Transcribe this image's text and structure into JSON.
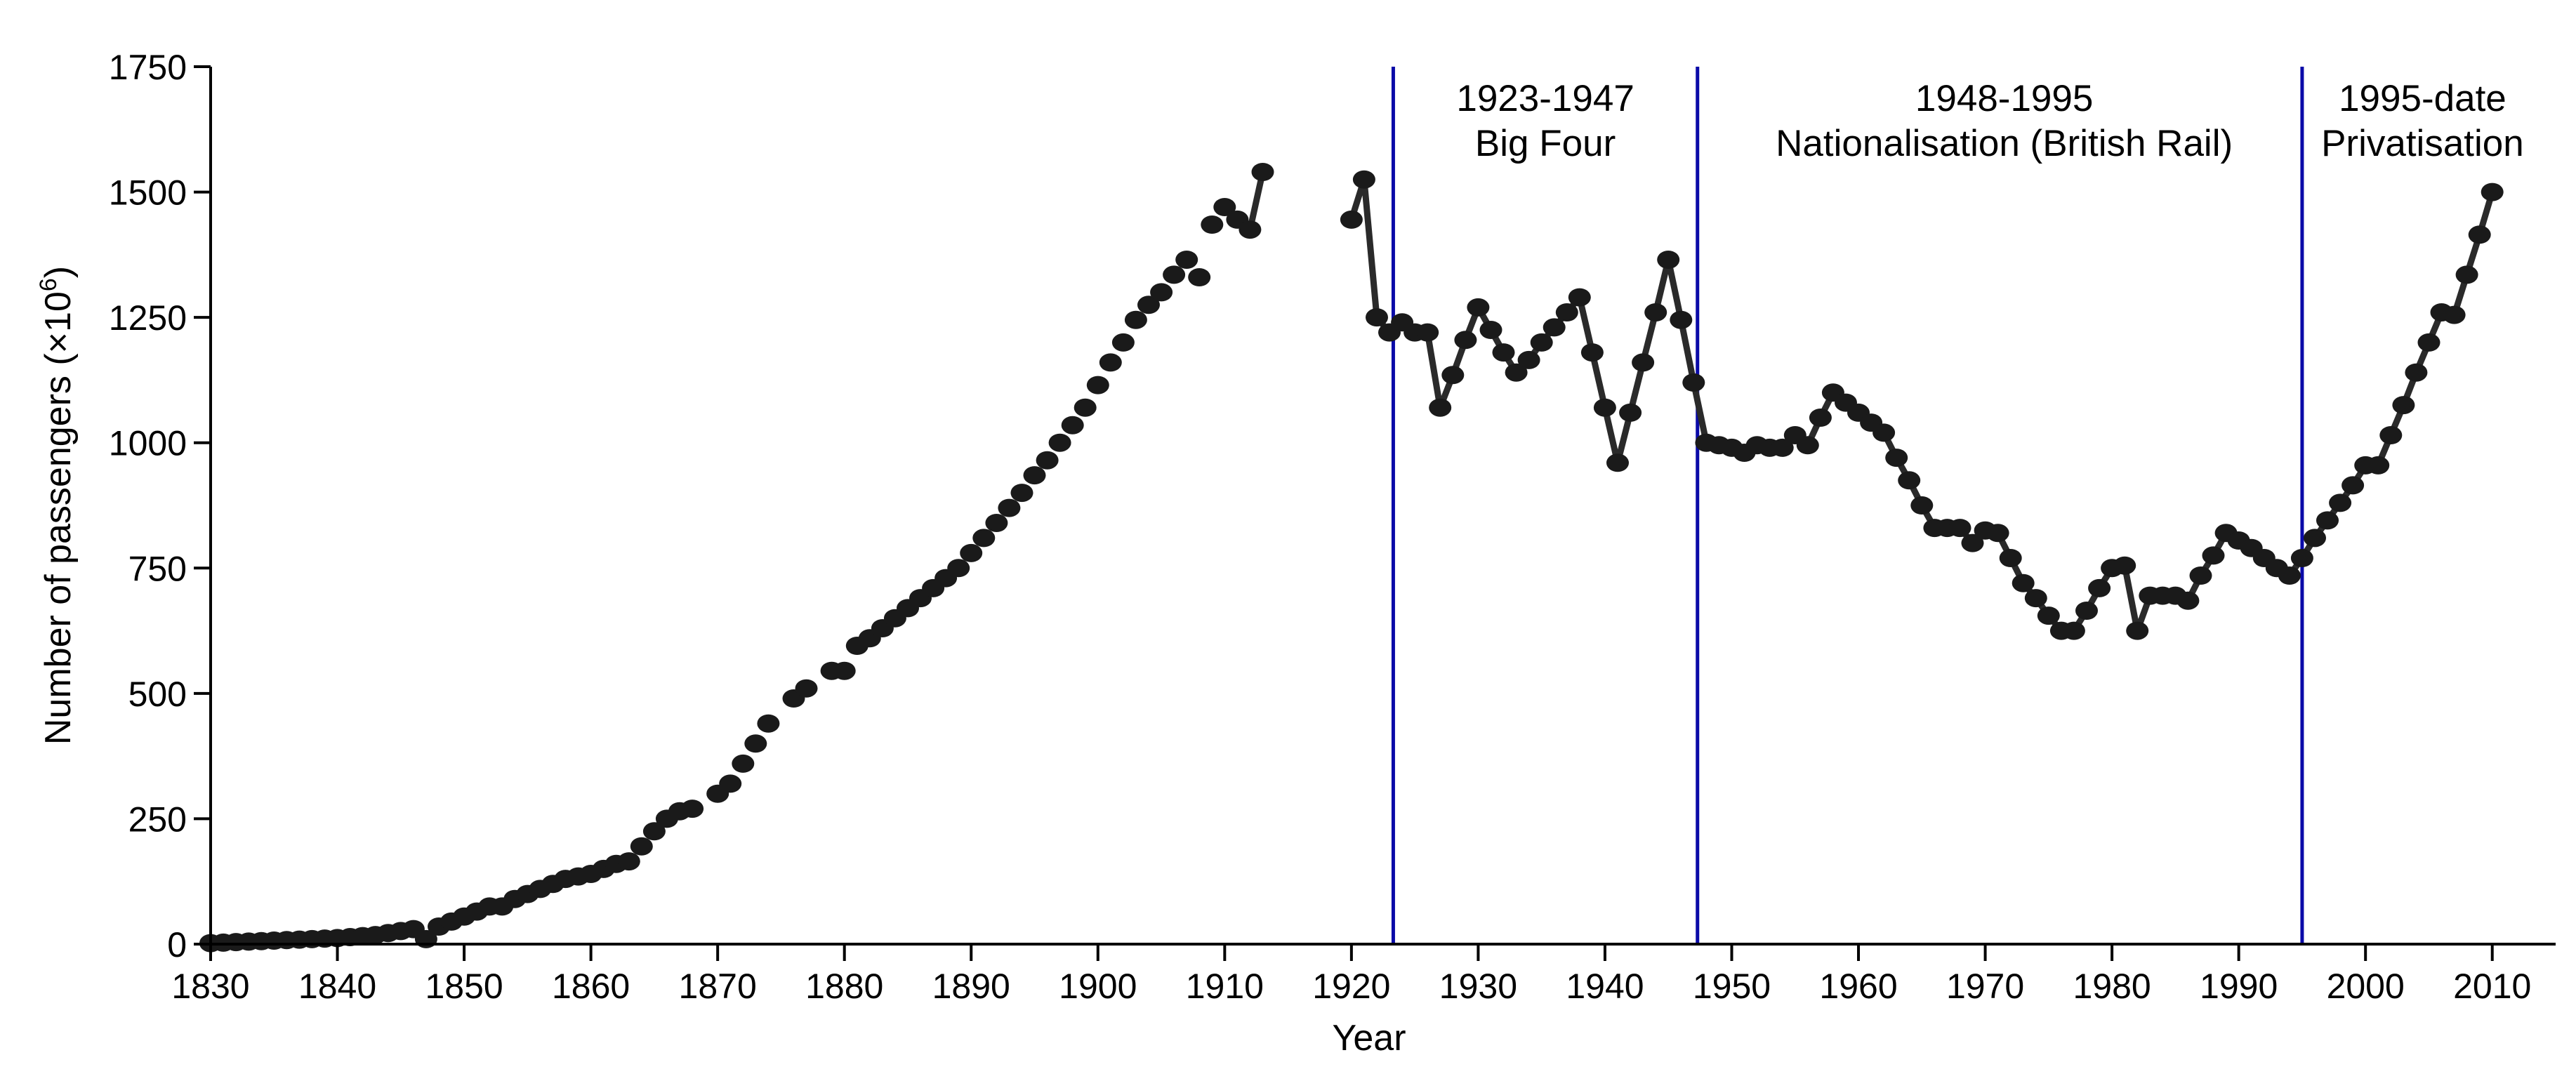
{
  "chart_data": {
    "type": "line",
    "title": "",
    "xlabel": "Year",
    "ylabel": "Number of passengers (×10",
    "ylabel_superscript": "6",
    "ylabel_suffix": ")",
    "xlim": [
      1830,
      2015
    ],
    "ylim": [
      0,
      1750
    ],
    "xticks": [
      1830,
      1840,
      1850,
      1860,
      1870,
      1880,
      1890,
      1900,
      1910,
      1920,
      1930,
      1940,
      1950,
      1960,
      1970,
      1980,
      1990,
      2000,
      2010
    ],
    "yticks": [
      0,
      250,
      500,
      750,
      1000,
      1250,
      1500,
      1750
    ],
    "grid": false,
    "legend": "none",
    "line_color": "#2a2a2a",
    "marker_color": "#1a1a1a",
    "era_line_color": "#0a0aa8",
    "eras": [
      {
        "x": 1923.3,
        "label_line1": "1923-1947",
        "label_line2": "Big Four",
        "label_center": 1935.3
      },
      {
        "x": 1947.3,
        "label_line1": "1948-1995",
        "label_line2": "Nationalisation (British Rail)",
        "label_center": 1971.5
      },
      {
        "x": 1995.0,
        "label_line1": "1995-date",
        "label_line2": "Privatisation",
        "label_center": 2004.5
      }
    ],
    "series": [
      {
        "segments": [
          {
            "line": false,
            "points": [
              [
                1830,
                2
              ],
              [
                1831,
                3
              ],
              [
                1832,
                4
              ],
              [
                1833,
                5
              ],
              [
                1834,
                6
              ],
              [
                1835,
                7
              ],
              [
                1836,
                8
              ],
              [
                1837,
                9
              ],
              [
                1838,
                10
              ],
              [
                1839,
                11
              ],
              [
                1840,
                12
              ],
              [
                1841,
                14
              ],
              [
                1842,
                16
              ],
              [
                1843,
                18
              ],
              [
                1844,
                22
              ],
              [
                1845,
                26
              ],
              [
                1846,
                30
              ],
              [
                1847,
                10
              ],
              [
                1848,
                35
              ],
              [
                1849,
                45
              ],
              [
                1850,
                55
              ],
              [
                1851,
                65
              ],
              [
                1852,
                75
              ],
              [
                1853,
                75
              ],
              [
                1854,
                90
              ],
              [
                1855,
                100
              ],
              [
                1856,
                110
              ],
              [
                1857,
                120
              ],
              [
                1858,
                130
              ],
              [
                1859,
                135
              ],
              [
                1860,
                140
              ],
              [
                1861,
                150
              ],
              [
                1862,
                160
              ],
              [
                1863,
                165
              ],
              [
                1864,
                195
              ],
              [
                1865,
                225
              ],
              [
                1866,
                250
              ],
              [
                1867,
                265
              ],
              [
                1868,
                270
              ],
              [
                1870,
                300
              ],
              [
                1871,
                320
              ],
              [
                1872,
                360
              ],
              [
                1873,
                400
              ],
              [
                1874,
                440
              ],
              [
                1876,
                490
              ],
              [
                1877,
                510
              ],
              [
                1879,
                545
              ],
              [
                1880,
                545
              ],
              [
                1881,
                595
              ],
              [
                1882,
                610
              ],
              [
                1883,
                630
              ],
              [
                1884,
                650
              ],
              [
                1885,
                670
              ],
              [
                1886,
                690
              ],
              [
                1887,
                710
              ],
              [
                1888,
                730
              ],
              [
                1889,
                750
              ],
              [
                1890,
                780
              ],
              [
                1891,
                810
              ],
              [
                1892,
                840
              ],
              [
                1893,
                870
              ],
              [
                1894,
                900
              ],
              [
                1895,
                935
              ],
              [
                1896,
                965
              ],
              [
                1897,
                1000
              ],
              [
                1898,
                1035
              ],
              [
                1899,
                1070
              ],
              [
                1900,
                1115
              ],
              [
                1901,
                1160
              ],
              [
                1902,
                1200
              ],
              [
                1903,
                1245
              ],
              [
                1904,
                1275
              ],
              [
                1905,
                1300
              ],
              [
                1906,
                1335
              ],
              [
                1907,
                1365
              ],
              [
                1908,
                1330
              ],
              [
                1909,
                1435
              ],
              [
                1910,
                1470
              ],
              [
                1911,
                1445
              ],
              [
                1912,
                1425
              ]
            ]
          },
          {
            "line": true,
            "points": [
              [
                1912,
                1425
              ],
              [
                1913,
                1540
              ]
            ]
          },
          {
            "line": true,
            "points": [
              [
                1920,
                1445
              ],
              [
                1921,
                1525
              ],
              [
                1922,
                1250
              ],
              [
                1923,
                1220
              ],
              [
                1924,
                1240
              ],
              [
                1925,
                1220
              ],
              [
                1926,
                1220
              ],
              [
                1927,
                1070
              ],
              [
                1928,
                1135
              ],
              [
                1929,
                1205
              ],
              [
                1930,
                1270
              ],
              [
                1931,
                1225
              ],
              [
                1932,
                1180
              ],
              [
                1933,
                1140
              ],
              [
                1934,
                1165
              ],
              [
                1935,
                1200
              ],
              [
                1936,
                1230
              ],
              [
                1937,
                1260
              ],
              [
                1938,
                1290
              ],
              [
                1939,
                1180
              ],
              [
                1940,
                1070
              ],
              [
                1941,
                960
              ],
              [
                1942,
                1060
              ],
              [
                1943,
                1160
              ],
              [
                1944,
                1260
              ],
              [
                1945,
                1365
              ],
              [
                1946,
                1245
              ],
              [
                1947,
                1120
              ],
              [
                1948,
                1000
              ],
              [
                1949,
                995
              ],
              [
                1950,
                990
              ],
              [
                1951,
                980
              ],
              [
                1952,
                995
              ],
              [
                1953,
                990
              ],
              [
                1954,
                990
              ],
              [
                1955,
                1015
              ],
              [
                1956,
                995
              ],
              [
                1957,
                1050
              ],
              [
                1958,
                1100
              ],
              [
                1959,
                1080
              ],
              [
                1960,
                1060
              ],
              [
                1961,
                1040
              ],
              [
                1962,
                1020
              ],
              [
                1963,
                970
              ],
              [
                1964,
                925
              ],
              [
                1965,
                875
              ],
              [
                1966,
                830
              ],
              [
                1967,
                830
              ],
              [
                1968,
                830
              ],
              [
                1969,
                800
              ],
              [
                1970,
                825
              ],
              [
                1971,
                820
              ],
              [
                1972,
                770
              ],
              [
                1973,
                720
              ],
              [
                1974,
                690
              ],
              [
                1975,
                655
              ],
              [
                1976,
                625
              ],
              [
                1977,
                625
              ],
              [
                1978,
                665
              ],
              [
                1979,
                710
              ],
              [
                1980,
                750
              ],
              [
                1981,
                755
              ],
              [
                1982,
                625
              ],
              [
                1983,
                695
              ],
              [
                1984,
                695
              ],
              [
                1985,
                695
              ],
              [
                1986,
                685
              ],
              [
                1987,
                735
              ],
              [
                1988,
                775
              ],
              [
                1989,
                820
              ],
              [
                1990,
                805
              ],
              [
                1991,
                790
              ],
              [
                1992,
                770
              ],
              [
                1993,
                750
              ],
              [
                1994,
                735
              ],
              [
                1995,
                770
              ],
              [
                1996,
                810
              ],
              [
                1997,
                845
              ],
              [
                1998,
                880
              ],
              [
                1999,
                915
              ],
              [
                2000,
                955
              ],
              [
                2001,
                955
              ],
              [
                2002,
                1015
              ],
              [
                2003,
                1075
              ],
              [
                2004,
                1140
              ],
              [
                2005,
                1200
              ],
              [
                2006,
                1260
              ],
              [
                2007,
                1255
              ],
              [
                2008,
                1335
              ],
              [
                2009,
                1415
              ],
              [
                2010,
                1500
              ]
            ]
          }
        ]
      }
    ]
  }
}
